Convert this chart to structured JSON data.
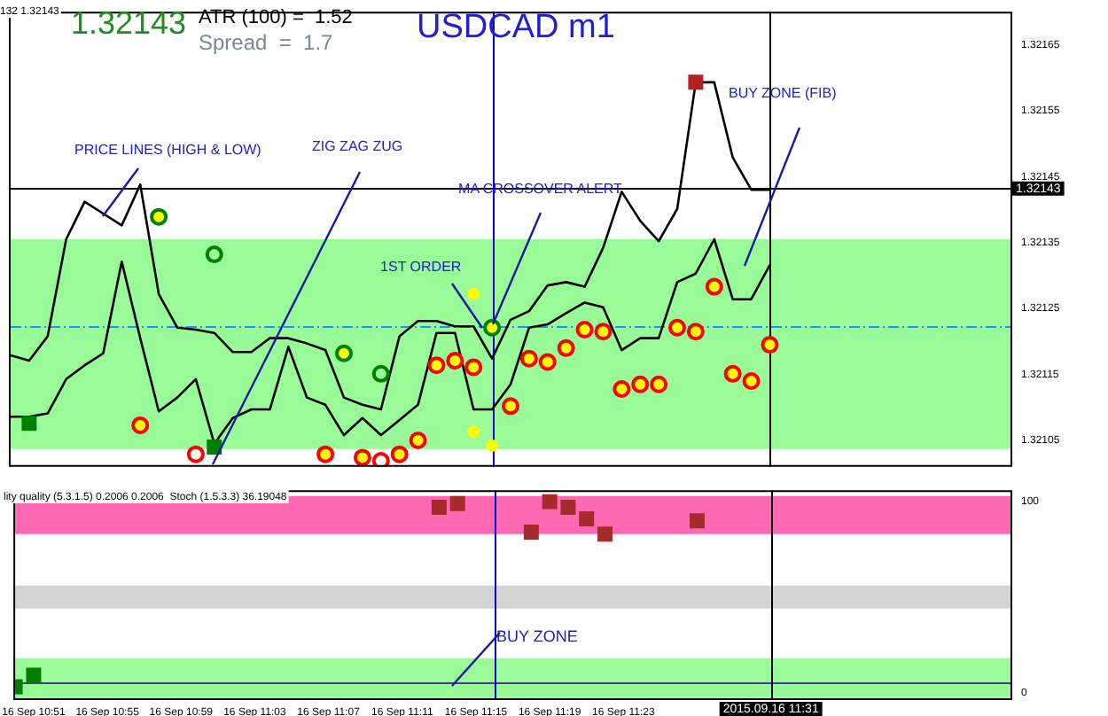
{
  "chart_data": [
    {
      "type": "line",
      "title": "USDCAD m1",
      "annotations": [
        "132 1.32143",
        "1.32143",
        "ATR (100) =  1.52",
        "Spread  =  1.7",
        "PRICE LINES (HIGH & LOW)",
        "ZIG ZAG ZUG",
        {
          "text": "MA CROSSOVER ALERT",
          "x": "2015-09-16T11:16",
          "y": 1.321221
        },
        {
          "text": "1ST ORDER",
          "x": "2015-09-16T11:16",
          "y": 1.321221
        },
        "BUY ZONE (FIB)"
      ],
      "x": [
        "2015-09-16T10:50",
        "2015-09-16T10:51",
        "2015-09-16T10:52",
        "2015-09-16T10:53",
        "2015-09-16T10:54",
        "2015-09-16T10:55",
        "2015-09-16T10:56",
        "2015-09-16T10:57",
        "2015-09-16T10:58",
        "2015-09-16T10:59",
        "2015-09-16T11:00",
        "2015-09-16T11:01",
        "2015-09-16T11:02",
        "2015-09-16T11:03",
        "2015-09-16T11:04",
        "2015-09-16T11:05",
        "2015-09-16T11:06",
        "2015-09-16T11:07",
        "2015-09-16T11:08",
        "2015-09-16T11:09",
        "2015-09-16T11:10",
        "2015-09-16T11:11",
        "2015-09-16T11:12",
        "2015-09-16T11:13",
        "2015-09-16T11:14",
        "2015-09-16T11:15",
        "2015-09-16T11:16",
        "2015-09-16T11:17",
        "2015-09-16T11:18",
        "2015-09-16T11:19",
        "2015-09-16T11:20",
        "2015-09-16T11:21",
        "2015-09-16T11:22",
        "2015-09-16T11:23",
        "2015-09-16T11:24",
        "2015-09-16T11:25",
        "2015-09-16T11:26",
        "2015-09-16T11:27",
        "2015-09-16T11:28",
        "2015-09-16T11:29",
        "2015-09-16T11:30",
        "2015-09-16T11:31"
      ],
      "series": [
        {
          "color": "#000000",
          "marker": "none",
          "values": [
            1.321179,
            1.321171,
            1.321208,
            1.321355,
            1.321412,
            1.321394,
            1.321376,
            1.321438,
            1.321272,
            1.321221,
            1.321218,
            1.321213,
            1.321184,
            1.321184,
            1.321205,
            1.321205,
            1.321197,
            1.321187,
            1.321115,
            1.321104,
            1.321097,
            1.321208,
            1.321231,
            1.321231,
            1.321223,
            1.321223,
            1.321174,
            1.321233,
            1.321246,
            1.321285,
            1.32129,
            1.321283,
            1.321342,
            1.321427,
            1.321383,
            1.321352,
            1.321401,
            1.321593,
            1.321593,
            1.321479,
            1.32143,
            1.32143
          ]
        },
        {
          "color": "#000000",
          "marker": "none",
          "values": [
            1.321086,
            1.321086,
            1.321091,
            1.321143,
            1.321164,
            1.321182,
            1.321321,
            1.321205,
            1.321094,
            1.321115,
            1.321143,
            1.321045,
            1.321084,
            1.321097,
            1.321097,
            1.321192,
            1.321115,
            1.321104,
            1.321058,
            1.321084,
            1.321058,
            1.321081,
            1.321104,
            1.321213,
            1.321213,
            1.321097,
            1.321097,
            1.321135,
            1.321221,
            1.321226,
            1.321243,
            1.321259,
            1.321252,
            1.321187,
            1.321205,
            1.321205,
            1.32129,
            1.321303,
            1.321355,
            1.321264,
            1.321264,
            1.321316
          ]
        },
        {
          "type": "scatter",
          "color": "#ff0000",
          "marker": "circle",
          "x": [
            "2015-09-16T10:57",
            "2015-09-16T11:07",
            "2015-09-16T11:09",
            "2015-09-16T11:11",
            "2015-09-16T11:12",
            "2015-09-16T11:13",
            "2015-09-16T11:14",
            "2015-09-16T11:15",
            "2015-09-16T11:17",
            "2015-09-16T11:18",
            "2015-09-16T11:19",
            "2015-09-16T11:20",
            "2015-09-16T11:21",
            "2015-09-16T11:22",
            "2015-09-16T11:23",
            "2015-09-16T11:24",
            "2015-09-16T11:25",
            "2015-09-16T11:26",
            "2015-09-16T11:27",
            "2015-09-16T11:28",
            "2015-09-16T11:29",
            "2015-09-16T11:30",
            "2015-09-16T11:31"
          ],
          "values": [
            1.321073,
            1.321029,
            1.321024,
            1.321029,
            1.32105,
            1.321164,
            1.321171,
            1.321161,
            1.321102,
            1.321174,
            1.321169,
            1.32119,
            1.321218,
            1.321215,
            1.321128,
            1.321135,
            1.321135,
            1.321221,
            1.321215,
            1.321283,
            1.321151,
            1.32114,
            1.321195
          ]
        },
        {
          "type": "scatter",
          "color": "#ff0000",
          "marker": "circle",
          "x": [
            "2015-09-16T11:00",
            "2015-09-16T11:10"
          ],
          "values": [
            1.321029,
            1.321019
          ]
        },
        {
          "type": "scatter",
          "color": "#008000",
          "marker": "circle",
          "x": [
            "2015-09-16T10:58",
            "2015-09-16T11:08",
            "2015-09-16T11:16"
          ],
          "values": [
            1.321389,
            1.321182,
            1.321221
          ]
        },
        {
          "type": "scatter",
          "color": "#008000",
          "marker": "circle",
          "x": [
            "2015-09-16T11:01",
            "2015-09-16T11:10"
          ],
          "values": [
            1.321332,
            1.321151
          ]
        },
        {
          "type": "scatter",
          "color": "#ffff00",
          "marker": "circle",
          "x": [
            "2015-09-16T11:15",
            "2015-09-16T11:15",
            "2015-09-16T11:16"
          ],
          "values": [
            1.321272,
            1.321063,
            1.321042
          ]
        },
        {
          "type": "scatter",
          "color": "#008000",
          "marker": "square",
          "x": [
            "2015-09-16T10:51",
            "2015-09-16T11:01"
          ],
          "values": [
            1.321076,
            1.32104
          ]
        },
        {
          "type": "scatter",
          "color": "#b22222",
          "marker": "square",
          "x": [
            "2015-09-16T11:27"
          ],
          "values": [
            1.321593
          ]
        }
      ],
      "xlim": [
        "2015-09-16T10:50",
        "2015-09-16T11:44"
      ],
      "ylim": [
        1.32101,
        1.3217
      ],
      "yticks": [
        {
          "value": 1.32105,
          "label": "1.32105"
        },
        {
          "value": 1.32115,
          "label": "1.32115"
        },
        {
          "value": 1.32125,
          "label": "1.32125"
        },
        {
          "value": 1.32135,
          "label": "1.32135"
        },
        {
          "value": 1.32145,
          "label": "1.32145"
        },
        {
          "value": 1.32155,
          "label": "1.32155"
        },
        {
          "value": 1.32165,
          "label": "1.32165"
        }
      ],
      "tick_labels": "y",
      "bands": [
        {
          "axis": "y",
          "from": 1.321037,
          "to": 1.321355,
          "color": "#98fb98"
        }
      ],
      "ref_lines": [
        {
          "axis": "y",
          "value": 1.321432,
          "label": "1.32143",
          "color": "#000000"
        },
        {
          "axis": "y",
          "value": 1.321223,
          "color": "#1e90ff",
          "line_style": "dashed"
        },
        {
          "axis": "x",
          "value": "2015-09-16T11:16",
          "color": "#0000cd"
        },
        {
          "axis": "x",
          "value": "2015-09-16T11:31",
          "color": "#000000"
        }
      ],
      "grid": false,
      "legend": false
    },
    {
      "type": "scatter",
      "annotations": [
        "lity quality (5.3.1.5) 0.2006 0.2006  Stoch (1.5.3.3) 36.19048",
        "BUY ZONE"
      ],
      "series": [
        {
          "color": "#a52a2a",
          "marker": "square",
          "x": [
            "2015-09-16T11:13",
            "2015-09-16T11:14",
            "2015-09-16T11:18",
            "2015-09-16T11:19",
            "2015-09-16T11:20",
            "2015-09-16T11:21",
            "2015-09-16T11:22",
            "2015-09-16T11:27"
          ],
          "values": [
            97,
            99,
            84,
            100,
            97,
            91,
            83,
            90
          ]
        },
        {
          "color": "#008000",
          "marker": "square",
          "x": [
            "2015-09-16T10:50",
            "2015-09-16T10:51"
          ],
          "values": [
            3,
            9
          ]
        }
      ],
      "xlim": [
        "2015-09-16T10:50",
        "2015-09-16T11:44"
      ],
      "ylim": [
        -4,
        106
      ],
      "xticks": [
        {
          "value": "2015-09-16T10:51",
          "label": "16 Sep 10:51"
        },
        {
          "value": "2015-09-16T10:55",
          "label": "16 Sep 10:55"
        },
        {
          "value": "2015-09-16T10:59",
          "label": "16 Sep 10:59"
        },
        {
          "value": "2015-09-16T11:03",
          "label": "16 Sep 11:03"
        },
        {
          "value": "2015-09-16T11:07",
          "label": "16 Sep 11:07"
        },
        {
          "value": "2015-09-16T11:11",
          "label": "16 Sep 11:11"
        },
        {
          "value": "2015-09-16T11:15",
          "label": "16 Sep 11:15"
        },
        {
          "value": "2015-09-16T11:19",
          "label": "16 Sep 11:19"
        },
        {
          "value": "2015-09-16T11:23",
          "label": "16 Sep 11:23"
        }
      ],
      "yticks": [
        0,
        100
      ],
      "bands": [
        {
          "axis": "y",
          "from": 83,
          "to": 103,
          "color": "#ff69b4"
        },
        {
          "axis": "y",
          "from": 44,
          "to": 56,
          "color": "#d3d3d3"
        },
        {
          "axis": "y",
          "from": -4,
          "to": 18,
          "color": "#98fb98"
        }
      ],
      "ref_lines": [
        {
          "axis": "y",
          "value": 5,
          "color": "#483d8b"
        },
        {
          "axis": "x",
          "value": "2015-09-16T11:16",
          "color": "#0000cd"
        },
        {
          "axis": "x",
          "value": "2015-09-16T11:31",
          "label": "2015.09.16 11:31",
          "color": "#000000"
        }
      ],
      "grid": false,
      "legend": false
    }
  ]
}
